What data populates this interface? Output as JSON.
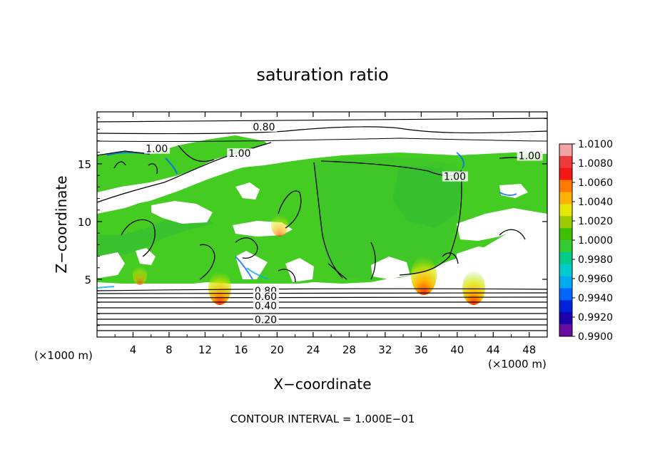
{
  "chart_data": {
    "type": "heatmap",
    "title": "saturation ratio",
    "xlabel": "X−coordinate",
    "ylabel": "Z−coordinate",
    "x_unit_left": "(×1000 m)",
    "x_unit_right": "(×1000 m)",
    "xlim": [
      0,
      50
    ],
    "ylim": [
      0,
      19.5
    ],
    "x_ticks": [
      4,
      8,
      12,
      16,
      20,
      24,
      28,
      32,
      36,
      40,
      44,
      48
    ],
    "y_ticks": [
      5,
      10,
      15
    ],
    "footer": "CONTOUR INTERVAL = 1.000E−01",
    "colorbar": {
      "min": 0.99,
      "max": 1.01,
      "labels": [
        "1.0100",
        "1.0080",
        "1.0060",
        "1.0040",
        "1.0020",
        "1.0000",
        "0.9980",
        "0.9960",
        "0.9940",
        "0.9920",
        "0.9900"
      ],
      "colors": [
        "#f3a3a3",
        "#ee3a3a",
        "#f51616",
        "#ff7b00",
        "#ffb000",
        "#e6e600",
        "#9ccc00",
        "#3cc000",
        "#33cc33",
        "#00cc88",
        "#00cccc",
        "#00aaee",
        "#0066ff",
        "#0022dd",
        "#1a00aa",
        "#6a0aa0"
      ]
    },
    "contour_labels": [
      {
        "text": "0.80",
        "x": 17.3,
        "z": 17.9
      },
      {
        "text": "1.00",
        "x": 5.4,
        "z": 16.0
      },
      {
        "text": "1.00",
        "x": 14.6,
        "z": 15.6
      },
      {
        "text": "1.00",
        "x": 46.8,
        "z": 15.4
      },
      {
        "text": "1.00",
        "x": 38.5,
        "z": 13.6
      },
      {
        "text": "0.80",
        "x": 17.5,
        "z": 3.7
      },
      {
        "text": "0.60",
        "x": 17.5,
        "z": 3.2
      },
      {
        "text": "0.40",
        "x": 17.5,
        "z": 2.4
      },
      {
        "text": "0.20",
        "x": 17.5,
        "z": 1.2
      }
    ]
  }
}
